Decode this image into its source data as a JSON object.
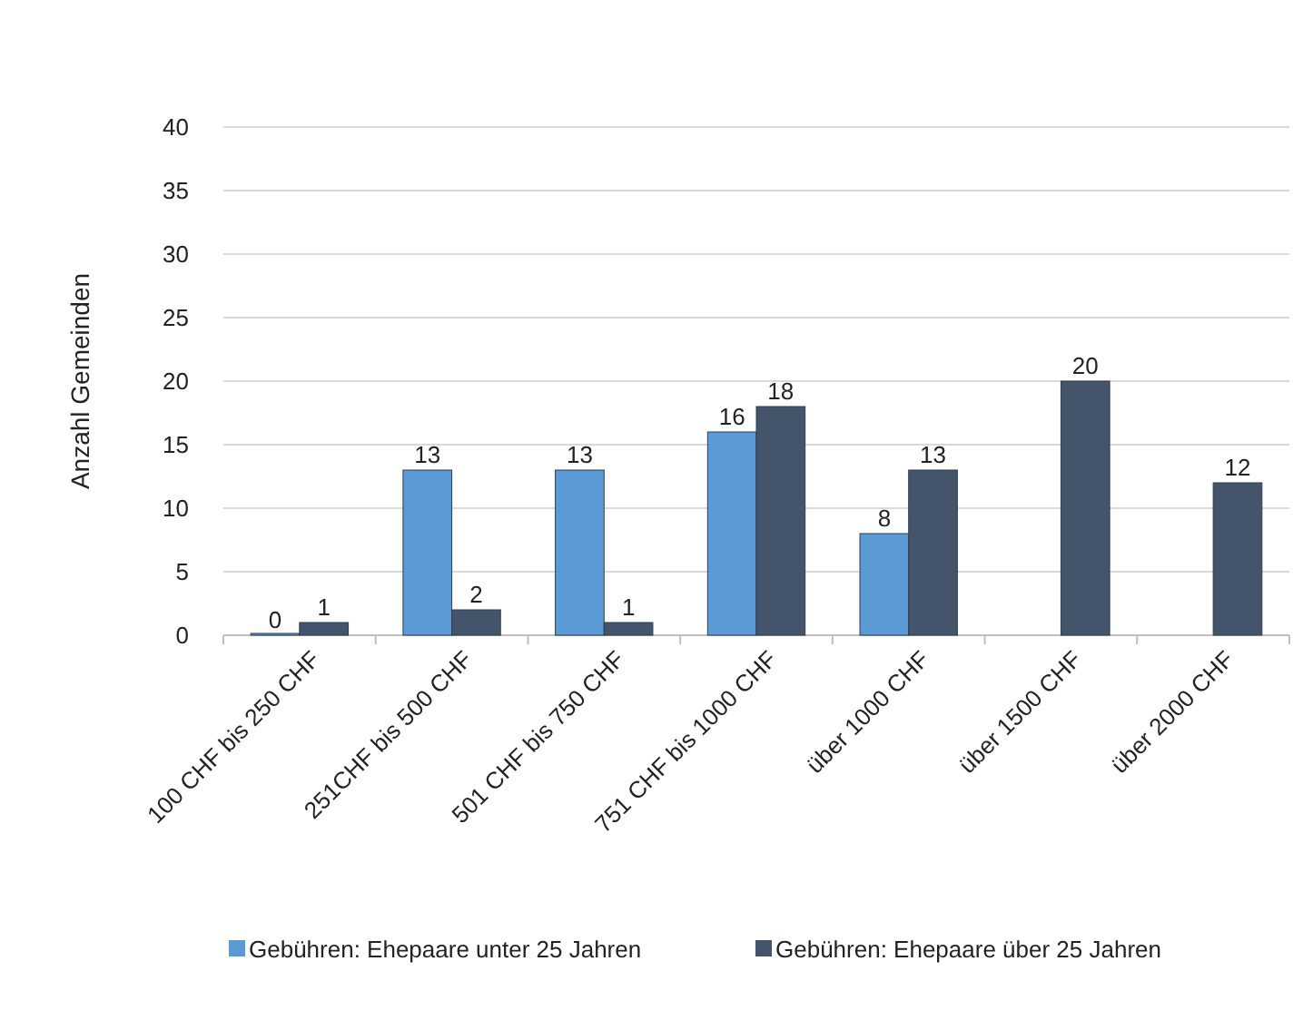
{
  "chart_data": {
    "type": "bar",
    "ylabel": "Anzahl Gemeinden",
    "categories": [
      "100 CHF bis 250 CHF",
      "251CHF bis 500 CHF",
      "501 CHF bis 750 CHF",
      "751 CHF bis 1000 CHF",
      "über 1000 CHF",
      "über 1500 CHF",
      "über 2000 CHF"
    ],
    "series": [
      {
        "name": "Gebühren: Ehepaare unter 25 Jahren",
        "color": "#5b9bd5",
        "values": [
          0,
          13,
          13,
          16,
          8,
          null,
          null
        ]
      },
      {
        "name": "Gebühren: Ehepaare über 25 Jahren",
        "color": "#44546a",
        "values": [
          1,
          2,
          1,
          18,
          13,
          20,
          12
        ]
      }
    ],
    "ylim": [
      0,
      40
    ],
    "yticks": [
      0,
      5,
      10,
      15,
      20,
      25,
      30,
      35,
      40
    ],
    "grid": "y",
    "data_labels": true,
    "legend": "bottom"
  }
}
